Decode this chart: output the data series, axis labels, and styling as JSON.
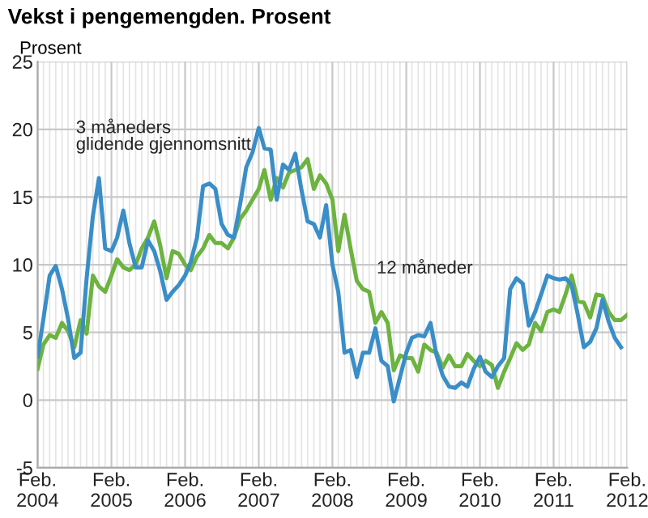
{
  "chart_data": {
    "type": "line",
    "title": "Vekst i pengemengden. Prosent",
    "ylabel": "Prosent",
    "x": [
      "2004-02",
      "2004-03",
      "2004-04",
      "2004-05",
      "2004-06",
      "2004-07",
      "2004-08",
      "2004-09",
      "2004-10",
      "2004-11",
      "2004-12",
      "2005-01",
      "2005-02",
      "2005-03",
      "2005-04",
      "2005-05",
      "2005-06",
      "2005-07",
      "2005-08",
      "2005-09",
      "2005-10",
      "2005-11",
      "2005-12",
      "2006-01",
      "2006-02",
      "2006-03",
      "2006-04",
      "2006-05",
      "2006-06",
      "2006-07",
      "2006-08",
      "2006-09",
      "2006-10",
      "2006-11",
      "2006-12",
      "2007-01",
      "2007-02",
      "2007-03",
      "2007-04",
      "2007-05",
      "2007-06",
      "2007-07",
      "2007-08",
      "2007-09",
      "2007-10",
      "2007-11",
      "2007-12",
      "2008-01",
      "2008-02",
      "2008-03",
      "2008-04",
      "2008-05",
      "2008-06",
      "2008-07",
      "2008-08",
      "2008-09",
      "2008-10",
      "2008-11",
      "2008-12",
      "2009-01",
      "2009-02",
      "2009-03",
      "2009-04",
      "2009-05",
      "2009-06",
      "2009-07",
      "2009-08",
      "2009-09",
      "2009-10",
      "2009-11",
      "2009-12",
      "2010-01",
      "2010-02",
      "2010-03",
      "2010-04",
      "2010-05",
      "2010-06",
      "2010-07",
      "2010-08",
      "2010-09",
      "2010-10",
      "2010-11",
      "2010-12",
      "2011-01",
      "2011-02",
      "2011-03",
      "2011-04",
      "2011-05",
      "2011-06",
      "2011-07",
      "2011-08",
      "2011-09",
      "2011-10",
      "2011-11",
      "2011-12",
      "2012-01",
      "2012-02"
    ],
    "series": [
      {
        "name": "3 måneders\nglidende gjennomsnitt",
        "color": "#3a8ec8",
        "values": [
          3.2,
          6.0,
          9.2,
          9.9,
          8.2,
          6.0,
          3.1,
          3.5,
          9.0,
          13.6,
          16.4,
          11.2,
          11.0,
          12.0,
          14.0,
          11.6,
          9.8,
          9.8,
          11.8,
          11.0,
          9.5,
          7.4,
          8.0,
          8.5,
          9.2,
          10.2,
          12.0,
          15.8,
          16.0,
          15.6,
          13.0,
          12.2,
          12.0,
          14.5,
          17.2,
          18.3,
          20.1,
          18.6,
          18.5,
          14.8,
          17.4,
          17.0,
          18.2,
          15.5,
          13.2,
          13.0,
          12.0,
          14.4,
          10.0,
          8.0,
          3.5,
          3.7,
          1.7,
          3.5,
          3.5,
          5.3,
          2.9,
          2.5,
          -0.1,
          1.7,
          3.5,
          4.6,
          4.8,
          4.7,
          5.7,
          3.3,
          1.8,
          1.0,
          0.9,
          1.3,
          1.0,
          2.3,
          3.2,
          2.1,
          1.7,
          2.5,
          3.1,
          8.2,
          9.0,
          8.6,
          5.5,
          6.5,
          7.8,
          9.2,
          9.0,
          8.9,
          9.0,
          8.5,
          6.3,
          3.9,
          4.3,
          5.3,
          7.4,
          5.8,
          4.6,
          3.9,
          null
        ]
      },
      {
        "name": "12 måneder",
        "color": "#6cb33f",
        "values": [
          2.3,
          4.1,
          4.8,
          4.6,
          5.7,
          5.1,
          3.9,
          5.9,
          4.9,
          9.2,
          8.4,
          8.0,
          9.2,
          10.4,
          9.8,
          9.6,
          10.0,
          11.2,
          12.0,
          13.2,
          11.4,
          9.0,
          11.0,
          10.8,
          10.0,
          9.6,
          10.6,
          11.2,
          12.2,
          11.6,
          11.6,
          11.2,
          12.0,
          13.4,
          14.0,
          14.8,
          15.6,
          17.0,
          14.8,
          16.4,
          15.7,
          16.8,
          17.0,
          17.2,
          17.8,
          15.6,
          16.6,
          16.0,
          14.8,
          11.0,
          13.7,
          11.2,
          8.8,
          8.2,
          8.0,
          5.7,
          6.5,
          5.7,
          2.2,
          3.3,
          3.1,
          3.1,
          2.1,
          4.1,
          3.7,
          3.5,
          2.4,
          3.3,
          2.5,
          2.5,
          3.4,
          2.9,
          2.5,
          2.9,
          2.6,
          0.9,
          2.1,
          3.1,
          4.2,
          3.7,
          4.1,
          5.7,
          5.1,
          6.5,
          6.7,
          6.5,
          7.8,
          9.2,
          7.3,
          7.2,
          6.1,
          7.8,
          7.7,
          6.5,
          5.9,
          5.9,
          6.3
        ]
      }
    ],
    "xlim": [
      "2004-02",
      "2012-02"
    ],
    "xticks": [
      {
        "value": "2004-02",
        "label": "Feb.\n2004"
      },
      {
        "value": "2005-02",
        "label": "Feb.\n2005"
      },
      {
        "value": "2006-02",
        "label": "Feb.\n2006"
      },
      {
        "value": "2007-02",
        "label": "Feb.\n2007"
      },
      {
        "value": "2008-02",
        "label": "Feb.\n2008"
      },
      {
        "value": "2009-02",
        "label": "Feb.\n2009"
      },
      {
        "value": "2010-02",
        "label": "Feb.\n2010"
      },
      {
        "value": "2011-02",
        "label": "Feb.\n2011"
      },
      {
        "value": "2012-02",
        "label": "Feb.\n2012"
      }
    ],
    "ylim": [
      -5,
      25
    ],
    "yticks": [
      -5,
      0,
      5,
      10,
      15,
      20,
      25
    ],
    "grid": true,
    "legend": false,
    "marker": "none",
    "line_style": "solid"
  }
}
